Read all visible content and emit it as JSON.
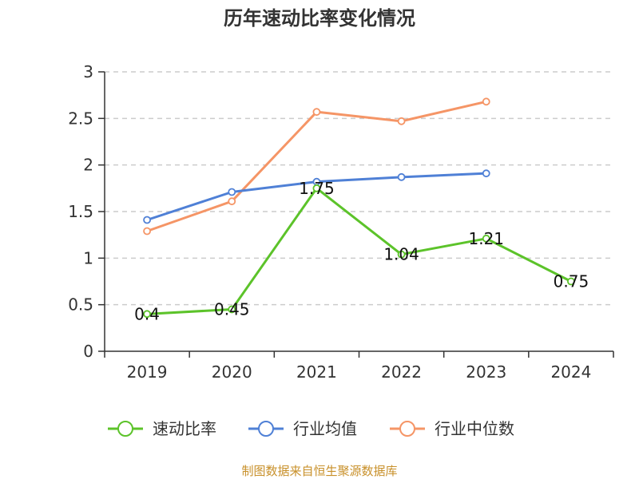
{
  "chart_data": {
    "type": "line",
    "title": "历年速动比率变化情况",
    "categories": [
      "2019",
      "2020",
      "2021",
      "2022",
      "2023",
      "2024"
    ],
    "y_ticks": [
      "0",
      "0.5",
      "1",
      "1.5",
      "2",
      "2.5",
      "3"
    ],
    "ylim": [
      0,
      3
    ],
    "grid": true,
    "legend_position": "bottom",
    "series": [
      {
        "name": "速动比率",
        "color": "#5cc32a",
        "values": [
          0.4,
          0.45,
          1.75,
          1.04,
          1.21,
          0.75
        ],
        "data_labels": [
          "0.4",
          "0.45",
          "1.75",
          "1.04",
          "1.21",
          "0.75"
        ]
      },
      {
        "name": "行业均值",
        "color": "#4f80d6",
        "values": [
          1.41,
          1.71,
          1.82,
          1.87,
          1.91,
          null
        ]
      },
      {
        "name": "行业中位数",
        "color": "#f59566",
        "values": [
          1.29,
          1.61,
          2.57,
          2.47,
          2.68,
          null
        ]
      }
    ]
  },
  "source_text": "制图数据来自恒生聚源数据库",
  "source_color": "#c8902a"
}
